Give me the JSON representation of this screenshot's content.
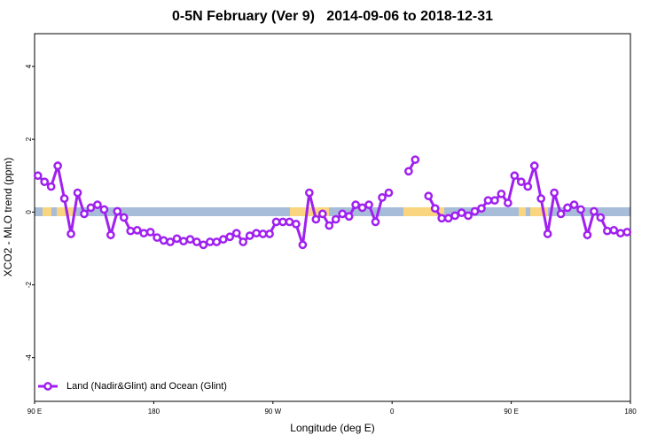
{
  "chart_data": {
    "type": "line",
    "title": "0-5N February (Ver 9)   2014-09-06 to 2018-12-31",
    "x_label": "Longitude (deg E)",
    "y_label": "XCO2 - MLO trend (ppm)",
    "xlim": [
      90,
      540
    ],
    "xticks": [
      {
        "value": 90,
        "label": "90 E"
      },
      180,
      {
        "value": 270,
        "label": "90 W"
      },
      {
        "value": 360,
        "label": "0"
      },
      {
        "value": 450,
        "label": "90 E"
      },
      {
        "value": 540,
        "label": "180"
      }
    ],
    "ylim": [
      -5.2,
      4.9
    ],
    "yticks": [
      -4,
      -2,
      0,
      2,
      4
    ],
    "legend": "bottomleft",
    "x": [
      92.5,
      97.5,
      102.5,
      107.5,
      112.5,
      117.5,
      122.5,
      127.5,
      132.5,
      137.5,
      142.5,
      147.5,
      152.5,
      157.5,
      162.5,
      167.5,
      172.5,
      177.5,
      182.5,
      187.5,
      192.5,
      197.5,
      202.5,
      207.5,
      212.5,
      217.5,
      222.5,
      227.5,
      232.5,
      237.5,
      242.5,
      247.5,
      252.5,
      257.5,
      262.5,
      267.5,
      272.5,
      277.5,
      282.5,
      287.5,
      292.5,
      297.5,
      302.5,
      307.5,
      312.5,
      317.5,
      322.5,
      327.5,
      332.5,
      337.5,
      342.5,
      347.5,
      352.5,
      357.5,
      362.5,
      367.5,
      372.5,
      377.5,
      382.5,
      387.5,
      392.5,
      397.5,
      402.5,
      407.5,
      412.5,
      417.5,
      422.5,
      427.5,
      432.5,
      437.5,
      442.5,
      447.5,
      452.5,
      457.5,
      462.5,
      467.5,
      472.5,
      477.5,
      482.5,
      487.5,
      492.5,
      497.5,
      502.5,
      507.5,
      512.5,
      517.5,
      522.5,
      527.5,
      532.5,
      537.5
    ],
    "series": [
      {
        "name": "Land (Nadir&Glint) and Ocean (Glint)",
        "color": "#a020f0",
        "values": [
          1.0,
          0.83,
          0.7,
          1.27,
          0.37,
          -0.6,
          0.53,
          -0.05,
          0.12,
          0.2,
          0.07,
          -0.63,
          0.02,
          -0.15,
          -0.52,
          -0.5,
          -0.58,
          -0.55,
          -0.7,
          -0.78,
          -0.82,
          -0.73,
          -0.8,
          -0.75,
          -0.82,
          -0.9,
          -0.82,
          -0.82,
          -0.75,
          -0.68,
          -0.58,
          -0.82,
          -0.65,
          -0.58,
          -0.6,
          -0.6,
          -0.27,
          -0.27,
          -0.27,
          -0.33,
          -0.9,
          0.53,
          -0.2,
          -0.05,
          -0.37,
          -0.2,
          -0.05,
          -0.12,
          0.2,
          0.12,
          0.2,
          -0.27,
          0.4,
          0.53,
          null,
          null,
          1.12,
          1.44,
          null,
          0.44,
          0.1,
          -0.17,
          -0.17,
          -0.1,
          -0.02,
          -0.1,
          0.02,
          0.1,
          0.32,
          0.32,
          0.5,
          0.25,
          1.0,
          0.83,
          0.7,
          1.27,
          0.37,
          -0.6,
          0.53,
          -0.05,
          0.12,
          0.2,
          0.07,
          -0.63,
          0.02,
          -0.15,
          -0.52,
          -0.5,
          -0.58,
          -0.55
        ]
      }
    ]
  }
}
